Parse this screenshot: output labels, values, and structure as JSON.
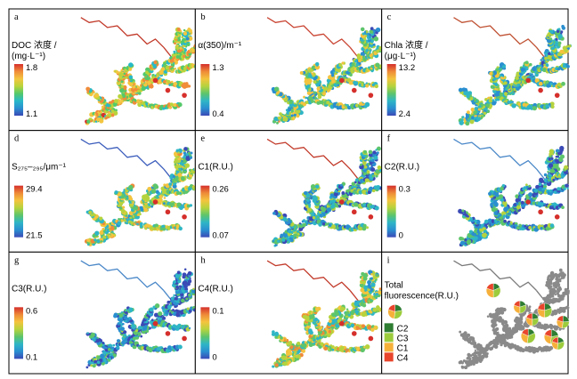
{
  "figure": {
    "panels": [
      {
        "id": "a",
        "title": "DOC 浓度 /",
        "subtitle": "(mg·L⁻¹)",
        "max": "1.8",
        "min": "1.1",
        "palette": [
          "#3949b5",
          "#2a8fd0",
          "#28b9c9",
          "#54c96a",
          "#b9d43c",
          "#f3c640",
          "#f08c3a",
          "#d7302c"
        ],
        "bias": 0.55,
        "river": "#c23a2a"
      },
      {
        "id": "b",
        "title": "α(350)/m⁻¹",
        "subtitle": "",
        "max": "1.3",
        "min": "0.4",
        "palette": [
          "#3b4ab6",
          "#2a8fd0",
          "#2fb6c6",
          "#5ec56b",
          "#b6d33e",
          "#f4c43e",
          "#ee8a38",
          "#d52f2b"
        ],
        "bias": 0.42,
        "river": "#c94432"
      },
      {
        "id": "c",
        "title": "Chla 浓度 /",
        "subtitle": "(μg·L⁻¹)",
        "max": "13.2",
        "min": "2.4",
        "palette": [
          "#3b4ab6",
          "#2a8fd0",
          "#2fb6c6",
          "#5ec56b",
          "#b6d33e",
          "#f4c43e",
          "#ee8a38",
          "#d52f2b"
        ],
        "bias": 0.35,
        "river": "#c05233"
      },
      {
        "id": "d",
        "title": "S₂₇₅–₂₉₅/μm⁻¹",
        "subtitle": "",
        "max": "29.4",
        "min": "21.5",
        "palette": [
          "#3b4ab6",
          "#2a8fd0",
          "#2fb6c6",
          "#5ec56b",
          "#b6d33e",
          "#f4c43e",
          "#ee8a38",
          "#d52f2b"
        ],
        "bias": 0.45,
        "river": "#3a5cbb"
      },
      {
        "id": "e",
        "title": "C1(R.U.)",
        "subtitle": "",
        "max": "0.26",
        "min": "0.07",
        "palette": [
          "#3b4ab6",
          "#2a8fd0",
          "#2fb6c6",
          "#5ec56b",
          "#b6d33e",
          "#f4c43e",
          "#ee8a38",
          "#d52f2b"
        ],
        "bias": 0.3,
        "river": "#c23a2a"
      },
      {
        "id": "f",
        "title": "C2(R.U.)",
        "subtitle": "",
        "max": "0.3",
        "min": "0",
        "palette": [
          "#3b4ab6",
          "#2a8fd0",
          "#2fb6c6",
          "#5ec56b",
          "#b6d33e",
          "#f4c43e",
          "#ee8a38",
          "#d52f2b"
        ],
        "bias": 0.22,
        "river": "#4a88c8"
      },
      {
        "id": "g",
        "title": "C3(R.U.)",
        "subtitle": "",
        "max": "0.6",
        "min": "0.1",
        "palette": [
          "#3b4ab6",
          "#2a8fd0",
          "#2fb6c6",
          "#5ec56b",
          "#b6d33e",
          "#f4c43e",
          "#ee8a38",
          "#d52f2b"
        ],
        "bias": 0.2,
        "river": "#4a88c8"
      },
      {
        "id": "h",
        "title": "C4(R.U.)",
        "subtitle": "",
        "max": "0.1",
        "min": "0",
        "palette": [
          "#3b4ab6",
          "#2a8fd0",
          "#2fb6c6",
          "#5ec56b",
          "#b6d33e",
          "#f4c43e",
          "#ee8a38",
          "#d52f2b"
        ],
        "bias": 0.5,
        "river": "#c23a2a"
      }
    ],
    "legend_panel": {
      "id": "i",
      "title_line1": "Total",
      "title_line2": "fluorescence(R.U.)",
      "entries": [
        {
          "label": "C2",
          "color": "#2e7d32"
        },
        {
          "label": "C3",
          "color": "#9ccc3c"
        },
        {
          "label": "C1",
          "color": "#f6b03a"
        },
        {
          "label": "C4",
          "color": "#e8452c"
        }
      ],
      "map_color": "#8a8a8a",
      "river_color": "#7a7a7a",
      "pie_fractions": [
        0.22,
        0.3,
        0.28,
        0.2
      ]
    }
  }
}
